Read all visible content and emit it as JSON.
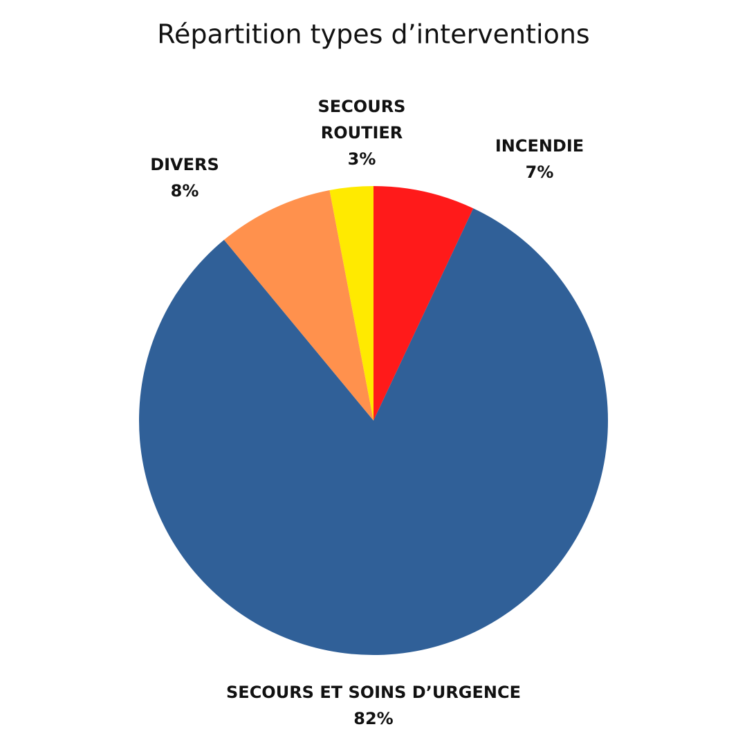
{
  "chart_data": {
    "type": "pie",
    "title": "Répartition types d’interventions",
    "categories": [
      "INCENDIE",
      "SECOURS ET SOINS D’URGENCE",
      "DIVERS",
      "SECOURS ROUTIER"
    ],
    "values": [
      7,
      82,
      8,
      3
    ],
    "value_labels": [
      "7%",
      "82%",
      "8%",
      "3%"
    ],
    "colors": [
      "#ff1a1a",
      "#306098",
      "#ff914d",
      "#ffea00"
    ]
  }
}
